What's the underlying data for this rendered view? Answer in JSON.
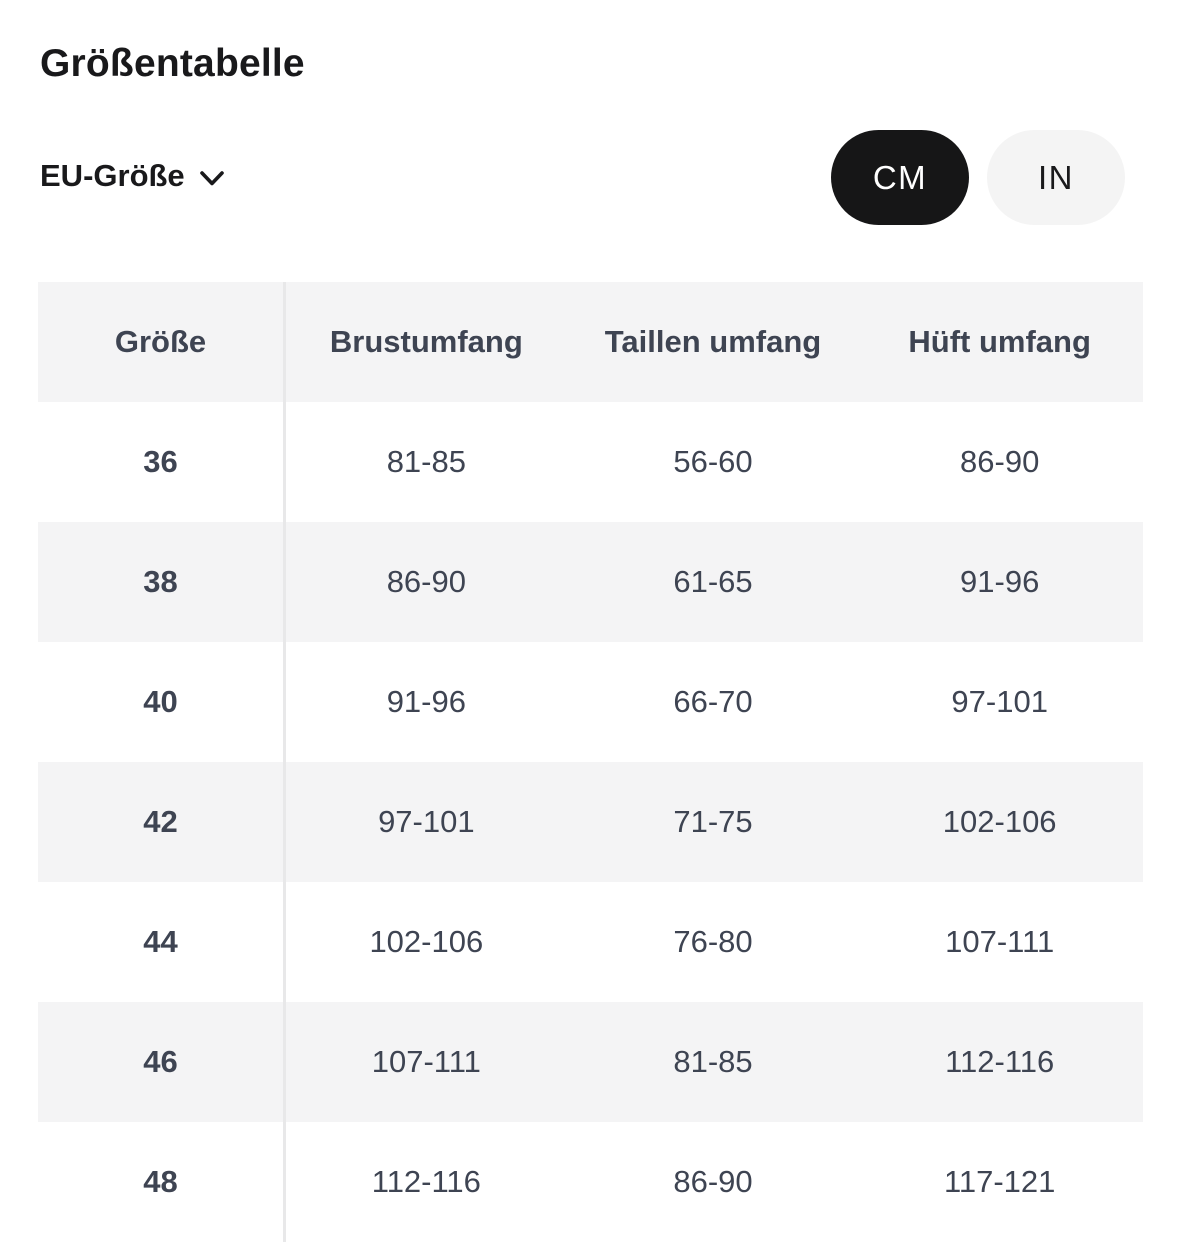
{
  "page": {
    "title": "Größentabelle"
  },
  "size_standard_dropdown": {
    "label": "EU-Größe",
    "icon": "chevron-down-icon"
  },
  "unit_toggle": {
    "options": [
      {
        "label": "CM",
        "selected": true
      },
      {
        "label": "IN",
        "selected": false
      }
    ]
  },
  "table": {
    "columns": [
      "Größe",
      "Brustumfang",
      "Taillen umfang",
      "Hüft umfang"
    ],
    "rows": [
      {
        "size": "36",
        "chest": "81-85",
        "waist": "56-60",
        "hip": "86-90"
      },
      {
        "size": "38",
        "chest": "86-90",
        "waist": "61-65",
        "hip": "91-96"
      },
      {
        "size": "40",
        "chest": "91-96",
        "waist": "66-70",
        "hip": "97-101"
      },
      {
        "size": "42",
        "chest": "97-101",
        "waist": "71-75",
        "hip": "102-106"
      },
      {
        "size": "44",
        "chest": "102-106",
        "waist": "76-80",
        "hip": "107-111"
      },
      {
        "size": "46",
        "chest": "107-111",
        "waist": "81-85",
        "hip": "112-116"
      },
      {
        "size": "48",
        "chest": "112-116",
        "waist": "86-90",
        "hip": "117-121"
      }
    ]
  },
  "colors": {
    "selected_pill_bg": "#161617",
    "selected_pill_text": "#ffffff",
    "unselected_pill_bg": "#f4f4f4",
    "row_stripe_bg": "#f4f4f5",
    "table_text": "#3e4452",
    "heading_text": "#19191b",
    "divider": "#e8e8e9"
  }
}
